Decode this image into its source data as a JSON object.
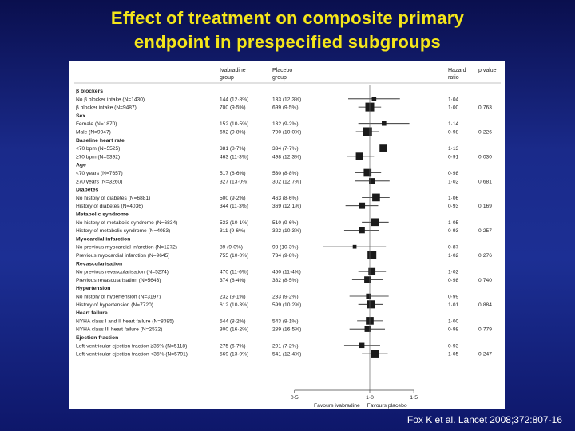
{
  "slide": {
    "title_line1": "Effect of treatment on composite primary",
    "title_line2": "endpoint in prespecified subgroups",
    "citation": "Fox K et al. Lancet 2008;372:807-16"
  },
  "colors": {
    "background": "#1a2a8a",
    "title": "#f5e61a",
    "marker": "#1a1a1a",
    "header_bg": "#ffffff"
  },
  "chart_data": {
    "type": "forest",
    "headers": {
      "ivabradine": "Ivabradine\ngroup",
      "placebo": "Placebo\ngroup",
      "hr": "Hazard\nratio",
      "p": "p value"
    },
    "groups": [
      {
        "title": "β blockers",
        "rows": [
          {
            "label": "No β blocker intake (N=1430)",
            "iva": "144 (12·8%)",
            "pla": "133 (12·3%)",
            "hr": 1.04,
            "hr_text": "1·04",
            "lo": 0.82,
            "hi": 1.32,
            "w": 0.4,
            "p": ""
          },
          {
            "label": "β blocker intake (N=9487)",
            "iva": "700 (9·5%)",
            "pla": "699 (9·5%)",
            "hr": 1.0,
            "hr_text": "1·00",
            "lo": 0.9,
            "hi": 1.11,
            "w": 1.0,
            "p": "0·763"
          }
        ]
      },
      {
        "title": "Sex",
        "rows": [
          {
            "label": "Female (N=1870)",
            "iva": "152 (10·5%)",
            "pla": "132 (9·2%)",
            "hr": 1.14,
            "hr_text": "1·14",
            "lo": 0.9,
            "hi": 1.44,
            "w": 0.4,
            "p": ""
          },
          {
            "label": "Male (N=9047)",
            "iva": "692 (9·8%)",
            "pla": "700 (10·0%)",
            "hr": 0.98,
            "hr_text": "0·98",
            "lo": 0.88,
            "hi": 1.09,
            "w": 1.0,
            "p": "0·226"
          }
        ]
      },
      {
        "title": "Baseline heart rate",
        "rows": [
          {
            "label": "<70 bpm (N=5525)",
            "iva": "381 (8·7%)",
            "pla": "334 (7·7%)",
            "hr": 1.13,
            "hr_text": "1·13",
            "lo": 0.98,
            "hi": 1.31,
            "w": 0.75,
            "p": ""
          },
          {
            "label": "≥70 bpm (N=5392)",
            "iva": "463 (11·3%)",
            "pla": "498 (12·3%)",
            "hr": 0.91,
            "hr_text": "0·91",
            "lo": 0.81,
            "hi": 1.04,
            "w": 0.8,
            "p": "0·030"
          }
        ]
      },
      {
        "title": "Age",
        "rows": [
          {
            "label": "<70 years (N=7657)",
            "iva": "517 (8·6%)",
            "pla": "530 (8·8%)",
            "hr": 0.98,
            "hr_text": "0·98",
            "lo": 0.87,
            "hi": 1.11,
            "w": 0.85,
            "p": ""
          },
          {
            "label": "≥70 years (N=3260)",
            "iva": "327 (13·0%)",
            "pla": "302 (12·7%)",
            "hr": 1.02,
            "hr_text": "1·02",
            "lo": 0.87,
            "hi": 1.2,
            "w": 0.6,
            "p": "0·681"
          }
        ]
      },
      {
        "title": "Diabetes",
        "rows": [
          {
            "label": "No history of diabetes (N=6881)",
            "iva": "500 (9·2%)",
            "pla": "463 (8·6%)",
            "hr": 1.06,
            "hr_text": "1·06",
            "lo": 0.93,
            "hi": 1.2,
            "w": 0.85,
            "p": ""
          },
          {
            "label": "History of diabetes (N=4036)",
            "iva": "344 (11·3%)",
            "pla": "369 (12·1%)",
            "hr": 0.93,
            "hr_text": "0·93",
            "lo": 0.8,
            "hi": 1.08,
            "w": 0.65,
            "p": "0·169"
          }
        ]
      },
      {
        "title": "Metabolic syndrome",
        "rows": [
          {
            "label": "No history of metabolic syndrome (N=6834)",
            "iva": "533 (10·1%)",
            "pla": "510 (9·6%)",
            "hr": 1.05,
            "hr_text": "1·05",
            "lo": 0.93,
            "hi": 1.19,
            "w": 0.85,
            "p": ""
          },
          {
            "label": "History of metabolic syndrome (N=4083)",
            "iva": "311 (9·6%)",
            "pla": "322 (10·3%)",
            "hr": 0.93,
            "hr_text": "0·93",
            "lo": 0.79,
            "hi": 1.09,
            "w": 0.6,
            "p": "0·257"
          }
        ]
      },
      {
        "title": "Myocardial infarction",
        "rows": [
          {
            "label": "No previous myocardial infarction (N=1272)",
            "iva": "89 (9·0%)",
            "pla": "98 (10·3%)",
            "hr": 0.87,
            "hr_text": "0·87",
            "lo": 0.65,
            "hi": 1.16,
            "w": 0.3,
            "p": ""
          },
          {
            "label": "Previous myocardial infarction (N=9645)",
            "iva": "755 (10·0%)",
            "pla": "734 (9·8%)",
            "hr": 1.02,
            "hr_text": "1·02",
            "lo": 0.92,
            "hi": 1.13,
            "w": 1.0,
            "p": "0·276"
          }
        ]
      },
      {
        "title": "Revascularisation",
        "rows": [
          {
            "label": "No previous revascularisation (N=5274)",
            "iva": "470 (11·6%)",
            "pla": "450 (11·4%)",
            "hr": 1.02,
            "hr_text": "1·02",
            "lo": 0.9,
            "hi": 1.16,
            "w": 0.75,
            "p": ""
          },
          {
            "label": "Previous revascularisation (N=5643)",
            "iva": "374 (8·4%)",
            "pla": "382 (8·5%)",
            "hr": 0.98,
            "hr_text": "0·98",
            "lo": 0.85,
            "hi": 1.13,
            "w": 0.7,
            "p": "0·740"
          }
        ]
      },
      {
        "title": "Hypertension",
        "rows": [
          {
            "label": "No history of hypertension (N=3197)",
            "iva": "232 (9·1%)",
            "pla": "233 (9·2%)",
            "hr": 0.99,
            "hr_text": "0·99",
            "lo": 0.83,
            "hi": 1.19,
            "w": 0.5,
            "p": ""
          },
          {
            "label": "History of hypertension (N=7720)",
            "iva": "612 (10·3%)",
            "pla": "599 (10·2%)",
            "hr": 1.01,
            "hr_text": "1·01",
            "lo": 0.9,
            "hi": 1.13,
            "w": 0.9,
            "p": "0·884"
          }
        ]
      },
      {
        "title": "Heart failure",
        "rows": [
          {
            "label": "NYHA class I and II heart failure (N=8385)",
            "iva": "544 (8·2%)",
            "pla": "543 (8·1%)",
            "hr": 1.0,
            "hr_text": "1·00",
            "lo": 0.89,
            "hi": 1.13,
            "w": 0.85,
            "p": ""
          },
          {
            "label": "NYHA class III heart failure (N=2532)",
            "iva": "300 (16·2%)",
            "pla": "289 (16·5%)",
            "hr": 0.98,
            "hr_text": "0·98",
            "lo": 0.83,
            "hi": 1.15,
            "w": 0.6,
            "p": "0·779"
          }
        ]
      },
      {
        "title": "Ejection fraction",
        "rows": [
          {
            "label": "Left-ventricular ejection fraction ≥35% (N=5118)",
            "iva": "275 (6·7%)",
            "pla": "291 (7·2%)",
            "hr": 0.93,
            "hr_text": "0·93",
            "lo": 0.79,
            "hi": 1.1,
            "w": 0.5,
            "p": ""
          },
          {
            "label": "Left-ventricular ejection fraction <35% (N=5791)",
            "iva": "569 (13·0%)",
            "pla": "541 (12·4%)",
            "hr": 1.05,
            "hr_text": "1·05",
            "lo": 0.93,
            "hi": 1.18,
            "w": 0.85,
            "p": "0·247"
          }
        ]
      }
    ],
    "axis": {
      "scale": "log",
      "ticks": [
        0.5,
        1.0,
        1.5
      ],
      "tick_labels": [
        "0·5",
        "1·0",
        "1·5"
      ],
      "xlim": [
        0.5,
        1.5
      ],
      "left_label": "Favours ivabradine",
      "right_label": "Favours placebo"
    }
  }
}
